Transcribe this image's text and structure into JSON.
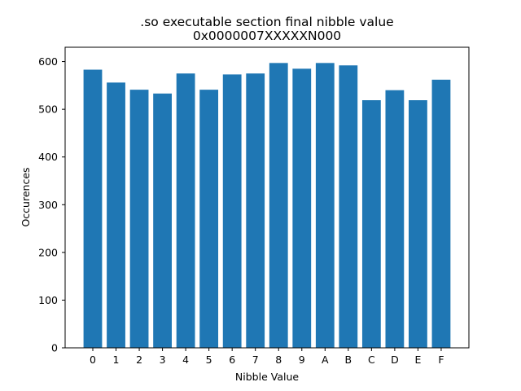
{
  "chart_data": {
    "type": "bar",
    "title_line1": ".so executable section final nibble value",
    "title_line2": "0x0000007XXXXXN000",
    "xlabel": "Nibble Value",
    "ylabel": "Occurences",
    "categories": [
      "0",
      "1",
      "2",
      "3",
      "4",
      "5",
      "6",
      "7",
      "8",
      "9",
      "A",
      "B",
      "C",
      "D",
      "E",
      "F"
    ],
    "values": [
      583,
      556,
      541,
      533,
      575,
      541,
      573,
      575,
      597,
      585,
      597,
      592,
      519,
      540,
      519,
      562
    ],
    "ylim": [
      0,
      630
    ],
    "yticks": [
      0,
      100,
      200,
      300,
      400,
      500,
      600
    ],
    "bar_color": "#1f77b4",
    "grid": false
  }
}
